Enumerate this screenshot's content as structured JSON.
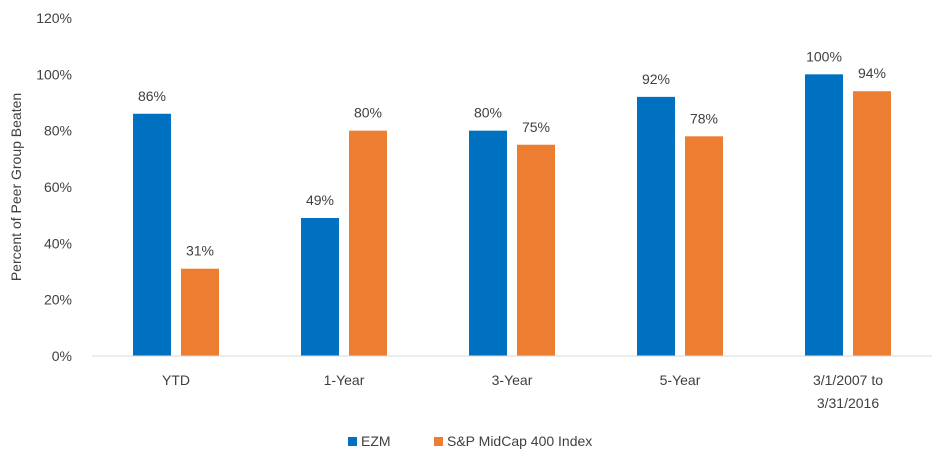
{
  "chart_data": {
    "type": "bar",
    "title": "",
    "xlabel": "",
    "ylabel": "Percent of Peer Group Beaten",
    "ylim": [
      0,
      120
    ],
    "yticks": [
      0,
      20,
      40,
      60,
      80,
      100,
      120
    ],
    "ytick_labels": [
      "0%",
      "20%",
      "40%",
      "60%",
      "80%",
      "100%",
      "120%"
    ],
    "grid": false,
    "legend_position": "bottom",
    "categories": [
      [
        "YTD"
      ],
      [
        "1-Year"
      ],
      [
        "3-Year"
      ],
      [
        "5-Year"
      ],
      [
        "3/1/2007 to",
        "3/31/2016"
      ]
    ],
    "series": [
      {
        "name": "EZM",
        "color": "#0070C0",
        "values": [
          86,
          49,
          80,
          92,
          100
        ],
        "labels": [
          "86%",
          "49%",
          "80%",
          "92%",
          "100%"
        ]
      },
      {
        "name": "S&P MidCap 400 Index",
        "color": "#ED7D31",
        "values": [
          31,
          80,
          75,
          78,
          94
        ],
        "labels": [
          "31%",
          "80%",
          "75%",
          "78%",
          "94%"
        ]
      }
    ]
  }
}
